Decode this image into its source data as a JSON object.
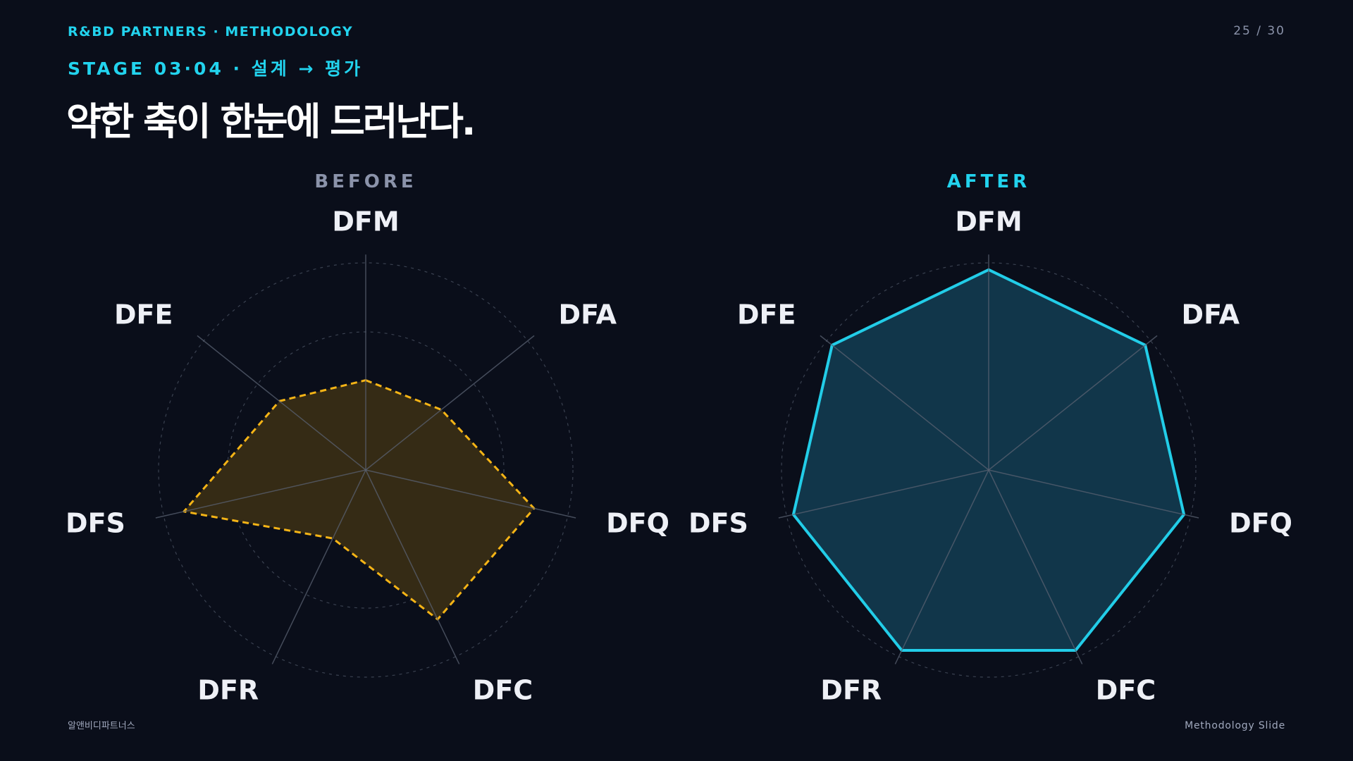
{
  "header": {
    "brand": "R&BD PARTNERS · METHODOLOGY",
    "page": "25 / 30",
    "stage": "STAGE 03·04 · 설계 → 평가",
    "title": "약한 축이 한눈에 드러난다."
  },
  "footer": {
    "company": "알앤비디파트너스",
    "label": "Methodology Slide"
  },
  "colors": {
    "background": "#0a0e1a",
    "accent": "#22d3ee",
    "before_line": "#f5b416",
    "before_fill": "#352b15",
    "after_line": "#22cde8",
    "after_fill": "#11364a",
    "grid": "#3a4150",
    "muted": "#8b93aa"
  },
  "chart_data": [
    {
      "type": "radar",
      "title": "BEFORE",
      "axes": [
        "DFM",
        "DFA",
        "DFQ",
        "DFC",
        "DFR",
        "DFS",
        "DFE"
      ],
      "values": [
        1.3,
        1.4,
        2.5,
        2.4,
        1.1,
        2.7,
        1.6
      ],
      "range": [
        0,
        3
      ],
      "grid_levels": 3,
      "line_style": "dashed"
    },
    {
      "type": "radar",
      "title": "AFTER",
      "axes": [
        "DFM",
        "DFA",
        "DFQ",
        "DFC",
        "DFR",
        "DFS",
        "DFE"
      ],
      "values": [
        2.9,
        2.9,
        2.9,
        2.9,
        2.9,
        2.9,
        2.9
      ],
      "range": [
        0,
        3
      ],
      "grid_levels": 3,
      "line_style": "solid"
    }
  ]
}
